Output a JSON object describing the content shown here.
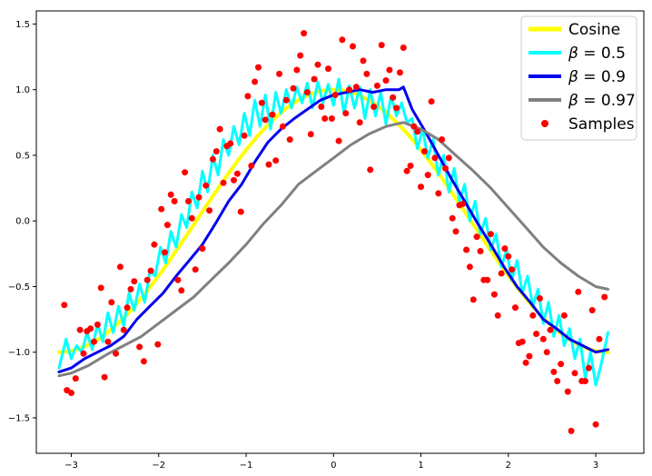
{
  "chart_data": {
    "type": "line",
    "title": "",
    "xlabel": "",
    "ylabel": "",
    "xlim": [
      -3.4,
      3.55
    ],
    "ylim": [
      -1.77,
      1.6
    ],
    "grid": false,
    "legend_position": "top-right",
    "xticks": [
      -3,
      -2,
      -1,
      0,
      1,
      2,
      3
    ],
    "xtick_labels": [
      "−3",
      "−2",
      "−1",
      "0",
      "1",
      "2",
      "3"
    ],
    "yticks": [
      -1.5,
      -1.0,
      -0.5,
      0.0,
      0.5,
      1.0,
      1.5
    ],
    "ytick_labels": [
      "−1.5",
      "−1.0",
      "−0.5",
      "0.0",
      "0.5",
      "1.0",
      "1.5"
    ],
    "series": [
      {
        "name": "Cosine",
        "legend_math": false,
        "color": "#ffff00",
        "width": 4,
        "function": "cos",
        "x_range": [
          -3.14,
          3.14
        ]
      },
      {
        "name": "β = 0.5",
        "legend_math": true,
        "legend_lhs": "β",
        "legend_rhs": "0.5",
        "color": "#00ffff",
        "width": 3,
        "x": [
          -3.14,
          -3.06,
          -3.0,
          -2.94,
          -2.88,
          -2.82,
          -2.76,
          -2.7,
          -2.64,
          -2.58,
          -2.52,
          -2.46,
          -2.4,
          -2.34,
          -2.28,
          -2.22,
          -2.16,
          -2.1,
          -2.04,
          -1.98,
          -1.92,
          -1.86,
          -1.8,
          -1.74,
          -1.68,
          -1.62,
          -1.56,
          -1.5,
          -1.44,
          -1.38,
          -1.32,
          -1.26,
          -1.2,
          -1.14,
          -1.08,
          -1.02,
          -0.96,
          -0.9,
          -0.84,
          -0.78,
          -0.72,
          -0.66,
          -0.6,
          -0.54,
          -0.48,
          -0.42,
          -0.36,
          -0.3,
          -0.24,
          -0.18,
          -0.12,
          -0.06,
          0.0,
          0.06,
          0.12,
          0.18,
          0.24,
          0.3,
          0.36,
          0.42,
          0.48,
          0.54,
          0.6,
          0.66,
          0.72,
          0.78,
          0.84,
          0.9,
          0.96,
          1.02,
          1.08,
          1.14,
          1.2,
          1.26,
          1.32,
          1.38,
          1.44,
          1.5,
          1.56,
          1.62,
          1.68,
          1.74,
          1.8,
          1.86,
          1.92,
          1.98,
          2.04,
          2.1,
          2.16,
          2.22,
          2.28,
          2.34,
          2.4,
          2.46,
          2.52,
          2.58,
          2.64,
          2.7,
          2.76,
          2.82,
          2.88,
          2.94,
          3.0,
          3.06,
          3.14
        ],
        "values": [
          -1.12,
          -0.9,
          -1.05,
          -0.95,
          -1.0,
          -0.85,
          -0.98,
          -0.78,
          -0.92,
          -0.7,
          -0.85,
          -0.65,
          -0.8,
          -0.55,
          -0.68,
          -0.48,
          -0.62,
          -0.38,
          -0.42,
          -0.2,
          -0.32,
          -0.08,
          -0.2,
          0.05,
          -0.05,
          0.22,
          0.1,
          0.38,
          0.22,
          0.5,
          0.35,
          0.62,
          0.5,
          0.72,
          0.58,
          0.82,
          0.65,
          0.92,
          0.72,
          0.96,
          0.7,
          0.98,
          0.82,
          1.0,
          0.86,
          1.02,
          0.9,
          1.05,
          0.86,
          1.06,
          0.9,
          1.04,
          0.88,
          1.08,
          0.82,
          1.03,
          0.86,
          1.02,
          0.78,
          1.0,
          0.8,
          0.98,
          0.74,
          0.95,
          0.8,
          0.9,
          0.75,
          0.78,
          0.55,
          0.7,
          0.48,
          0.62,
          0.35,
          0.5,
          0.22,
          0.4,
          0.15,
          0.28,
          0.0,
          0.15,
          -0.1,
          0.02,
          -0.22,
          -0.1,
          -0.35,
          -0.22,
          -0.45,
          -0.3,
          -0.55,
          -0.42,
          -0.65,
          -0.52,
          -0.78,
          -0.62,
          -0.88,
          -0.72,
          -0.95,
          -0.82,
          -1.05,
          -0.9,
          -1.2,
          -1.0,
          -1.25,
          -1.1,
          -0.85
        ]
      },
      {
        "name": "β = 0.9",
        "legend_math": true,
        "legend_lhs": "β",
        "legend_rhs": "0.9",
        "color": "#0000ee",
        "width": 3,
        "x": [
          -3.14,
          -3.0,
          -2.85,
          -2.7,
          -2.55,
          -2.4,
          -2.25,
          -2.1,
          -1.95,
          -1.8,
          -1.65,
          -1.5,
          -1.35,
          -1.2,
          -1.05,
          -0.9,
          -0.75,
          -0.6,
          -0.45,
          -0.3,
          -0.15,
          0.0,
          0.15,
          0.3,
          0.45,
          0.6,
          0.75,
          0.8,
          0.9,
          1.05,
          1.2,
          1.35,
          1.5,
          1.65,
          1.8,
          1.95,
          2.1,
          2.25,
          2.4,
          2.55,
          2.7,
          2.85,
          3.0,
          3.14
        ],
        "values": [
          -1.15,
          -1.12,
          -1.05,
          -1.0,
          -0.95,
          -0.88,
          -0.75,
          -0.65,
          -0.55,
          -0.42,
          -0.3,
          -0.18,
          -0.02,
          0.15,
          0.28,
          0.45,
          0.6,
          0.7,
          0.78,
          0.85,
          0.92,
          0.96,
          0.98,
          1.0,
          0.98,
          1.0,
          1.0,
          1.02,
          0.85,
          0.68,
          0.5,
          0.32,
          0.15,
          -0.02,
          -0.18,
          -0.35,
          -0.5,
          -0.62,
          -0.75,
          -0.82,
          -0.9,
          -0.95,
          -1.0,
          -0.98
        ]
      },
      {
        "name": "β = 0.97",
        "legend_math": true,
        "legend_lhs": "β",
        "legend_rhs": "0.97",
        "color": "#808080",
        "width": 3,
        "x": [
          -3.14,
          -3.0,
          -2.8,
          -2.6,
          -2.4,
          -2.2,
          -2.0,
          -1.8,
          -1.6,
          -1.4,
          -1.2,
          -1.0,
          -0.8,
          -0.6,
          -0.4,
          -0.2,
          0.0,
          0.2,
          0.4,
          0.6,
          0.8,
          1.0,
          1.2,
          1.4,
          1.6,
          1.8,
          2.0,
          2.2,
          2.4,
          2.6,
          2.8,
          3.0,
          3.14
        ],
        "values": [
          -1.18,
          -1.16,
          -1.1,
          -1.02,
          -0.95,
          -0.88,
          -0.78,
          -0.68,
          -0.58,
          -0.45,
          -0.32,
          -0.18,
          -0.02,
          0.12,
          0.28,
          0.38,
          0.48,
          0.58,
          0.66,
          0.72,
          0.75,
          0.7,
          0.62,
          0.5,
          0.38,
          0.25,
          0.1,
          -0.05,
          -0.2,
          -0.32,
          -0.42,
          -0.5,
          -0.52
        ]
      }
    ],
    "samples": {
      "name": "Samples",
      "color": "#ff0000",
      "points": [
        [
          -3.08,
          -0.64
        ],
        [
          -3.05,
          -1.29
        ],
        [
          -3.0,
          -1.31
        ],
        [
          -2.95,
          -1.2
        ],
        [
          -2.9,
          -0.83
        ],
        [
          -2.86,
          -1.01
        ],
        [
          -2.82,
          -0.84
        ],
        [
          -2.78,
          -0.82
        ],
        [
          -2.74,
          -0.92
        ],
        [
          -2.7,
          -0.79
        ],
        [
          -2.66,
          -0.51
        ],
        [
          -2.62,
          -1.19
        ],
        [
          -2.58,
          -0.92
        ],
        [
          -2.54,
          -0.62
        ],
        [
          -2.49,
          -1.01
        ],
        [
          -2.44,
          -0.35
        ],
        [
          -2.4,
          -0.83
        ],
        [
          -2.36,
          -0.66
        ],
        [
          -2.32,
          -0.52
        ],
        [
          -2.28,
          -0.46
        ],
        [
          -2.22,
          -0.96
        ],
        [
          -2.17,
          -1.07
        ],
        [
          -2.13,
          -0.45
        ],
        [
          -2.09,
          -0.38
        ],
        [
          -2.05,
          -0.18
        ],
        [
          -2.01,
          -0.94
        ],
        [
          -1.97,
          0.09
        ],
        [
          -1.93,
          -0.24
        ],
        [
          -1.9,
          -0.03
        ],
        [
          -1.86,
          0.2
        ],
        [
          -1.82,
          0.15
        ],
        [
          -1.78,
          -0.45
        ],
        [
          -1.74,
          -0.53
        ],
        [
          -1.7,
          0.37
        ],
        [
          -1.66,
          0.15
        ],
        [
          -1.62,
          0.02
        ],
        [
          -1.58,
          -0.37
        ],
        [
          -1.54,
          0.18
        ],
        [
          -1.5,
          -0.21
        ],
        [
          -1.46,
          0.27
        ],
        [
          -1.42,
          0.08
        ],
        [
          -1.38,
          0.47
        ],
        [
          -1.34,
          0.53
        ],
        [
          -1.3,
          0.7
        ],
        [
          -1.26,
          0.29
        ],
        [
          -1.22,
          0.57
        ],
        [
          -1.18,
          0.59
        ],
        [
          -1.14,
          0.31
        ],
        [
          -1.1,
          0.36
        ],
        [
          -1.06,
          0.07
        ],
        [
          -1.02,
          0.65
        ],
        [
          -0.98,
          0.95
        ],
        [
          -0.94,
          0.42
        ],
        [
          -0.9,
          1.06
        ],
        [
          -0.86,
          1.17
        ],
        [
          -0.82,
          0.9
        ],
        [
          -0.78,
          0.77
        ],
        [
          -0.74,
          0.43
        ],
        [
          -0.7,
          0.81
        ],
        [
          -0.66,
          0.46
        ],
        [
          -0.62,
          1.12
        ],
        [
          -0.58,
          0.72
        ],
        [
          -0.54,
          0.92
        ],
        [
          -0.5,
          0.62
        ],
        [
          -0.46,
          1.01
        ],
        [
          -0.42,
          1.15
        ],
        [
          -0.38,
          1.26
        ],
        [
          -0.34,
          1.43
        ],
        [
          -0.3,
          0.98
        ],
        [
          -0.26,
          0.66
        ],
        [
          -0.22,
          1.08
        ],
        [
          -0.18,
          1.19
        ],
        [
          -0.14,
          0.87
        ],
        [
          -0.1,
          0.78
        ],
        [
          -0.06,
          1.16
        ],
        [
          -0.02,
          0.78
        ],
        [
          0.02,
          0.96
        ],
        [
          0.06,
          0.61
        ],
        [
          0.1,
          1.38
        ],
        [
          0.14,
          0.82
        ],
        [
          0.18,
          1.0
        ],
        [
          0.22,
          1.33
        ],
        [
          0.26,
          1.02
        ],
        [
          0.3,
          0.75
        ],
        [
          0.34,
          1.22
        ],
        [
          0.38,
          1.12
        ],
        [
          0.42,
          0.39
        ],
        [
          0.46,
          0.87
        ],
        [
          0.5,
          1.03
        ],
        [
          0.55,
          1.34
        ],
        [
          0.6,
          1.07
        ],
        [
          0.64,
          1.15
        ],
        [
          0.68,
          0.94
        ],
        [
          0.72,
          0.86
        ],
        [
          0.76,
          1.13
        ],
        [
          0.8,
          1.32
        ],
        [
          0.84,
          0.38
        ],
        [
          0.88,
          0.42
        ],
        [
          0.92,
          0.72
        ],
        [
          0.96,
          0.68
        ],
        [
          1.0,
          0.26
        ],
        [
          1.04,
          0.53
        ],
        [
          1.08,
          0.35
        ],
        [
          1.12,
          0.91
        ],
        [
          1.16,
          0.48
        ],
        [
          1.2,
          0.21
        ],
        [
          1.24,
          0.62
        ],
        [
          1.28,
          0.4
        ],
        [
          1.32,
          0.48
        ],
        [
          1.36,
          0.02
        ],
        [
          1.4,
          -0.08
        ],
        [
          1.44,
          0.12
        ],
        [
          1.48,
          0.13
        ],
        [
          1.52,
          -0.22
        ],
        [
          1.56,
          -0.35
        ],
        [
          1.6,
          -0.6
        ],
        [
          1.64,
          -0.12
        ],
        [
          1.68,
          -0.23
        ],
        [
          1.72,
          -0.45
        ],
        [
          1.76,
          -0.45
        ],
        [
          1.8,
          -0.1
        ],
        [
          1.84,
          -0.56
        ],
        [
          1.88,
          -0.72
        ],
        [
          1.92,
          -0.4
        ],
        [
          1.96,
          -0.21
        ],
        [
          2.0,
          -0.27
        ],
        [
          2.04,
          -0.37
        ],
        [
          2.08,
          -0.66
        ],
        [
          2.12,
          -0.93
        ],
        [
          2.16,
          -0.92
        ],
        [
          2.2,
          -1.08
        ],
        [
          2.24,
          -1.03
        ],
        [
          2.28,
          -0.72
        ],
        [
          2.32,
          -0.86
        ],
        [
          2.36,
          -0.59
        ],
        [
          2.4,
          -0.9
        ],
        [
          2.44,
          -1.0
        ],
        [
          2.48,
          -0.83
        ],
        [
          2.52,
          -1.15
        ],
        [
          2.56,
          -1.22
        ],
        [
          2.6,
          -1.09
        ],
        [
          2.64,
          -0.72
        ],
        [
          2.68,
          -1.3
        ],
        [
          2.72,
          -1.6
        ],
        [
          2.76,
          -1.16
        ],
        [
          2.8,
          -0.54
        ],
        [
          2.84,
          -1.22
        ],
        [
          2.88,
          -1.22
        ],
        [
          2.92,
          -1.12
        ],
        [
          2.96,
          -0.68
        ],
        [
          3.0,
          -1.55
        ],
        [
          3.04,
          -0.9
        ],
        [
          3.1,
          -0.58
        ]
      ]
    }
  }
}
